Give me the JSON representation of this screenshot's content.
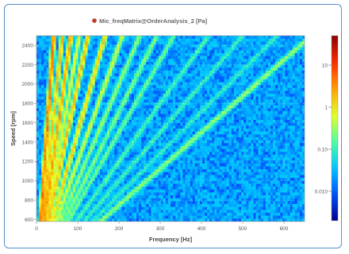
{
  "chart_data": {
    "type": "heatmap",
    "title": "Mic_freqMatrix@OrderAnalysis_2 [Pa]",
    "title_marker_color": "#c0392b",
    "xlabel": "Frequency [Hz]",
    "ylabel": "Speed [rpm]",
    "xlim": [
      0,
      650
    ],
    "ylim": [
      580,
      2500
    ],
    "x_ticks": [
      0,
      100,
      200,
      300,
      400,
      500,
      600
    ],
    "y_ticks": [
      600,
      800,
      1000,
      1200,
      1400,
      1600,
      1800,
      2000,
      2200,
      2400
    ],
    "grid": true,
    "colorbar": {
      "scale": "log",
      "range": [
        0.002,
        50
      ],
      "ticks": [
        {
          "value": 10,
          "label": "10"
        },
        {
          "value": 1,
          "label": "1"
        },
        {
          "value": 0.1,
          "label": "0.10"
        },
        {
          "value": 0.01,
          "label": "0.010"
        }
      ],
      "colors": [
        "#00008b",
        "#0050ff",
        "#00c8ff",
        "#50ffa0",
        "#e6ff28",
        "#ffa000",
        "#ff2800",
        "#8b0000"
      ]
    },
    "background_level": 0.02,
    "orders": [
      {
        "order": 1,
        "peak": 5
      },
      {
        "order": 1.5,
        "peak": 2
      },
      {
        "order": 2,
        "peak": 3
      },
      {
        "order": 2.5,
        "peak": 0.8
      },
      {
        "order": 3,
        "peak": 2
      },
      {
        "order": 4,
        "peak": 1.5
      },
      {
        "order": 5,
        "peak": 0.6
      },
      {
        "order": 6,
        "peak": 0.3
      },
      {
        "order": 7,
        "peak": 0.25
      },
      {
        "order": 8,
        "peak": 0.2
      },
      {
        "order": 10,
        "peak": 0.12
      },
      {
        "order": 12,
        "peak": 0.1
      },
      {
        "order": 14,
        "peak": 0.08
      },
      {
        "order": 16,
        "peak": 0.3
      }
    ]
  }
}
